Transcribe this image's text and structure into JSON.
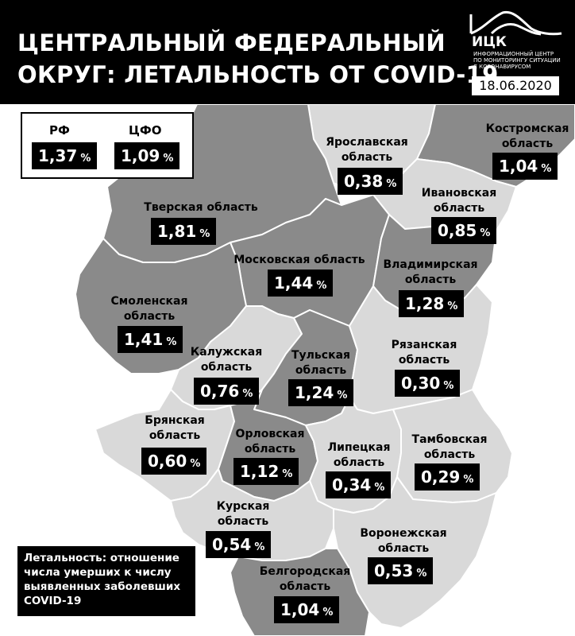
{
  "header": {
    "title_line1": "ЦЕНТРАЛЬНЫЙ ФЕДЕРАЛЬНЫЙ",
    "title_line2": "ОКРУГ: ЛЕТАЛЬНОСТЬ ОТ COVID-19",
    "logo_text": "ИЦК",
    "logo_subtitle": "ИНФОРМАЦИОННЫЙ ЦЕНТР ПО МОНИТОРИНГУ СИТУАЦИИ С КОРОНАВИРУСОМ",
    "date": "18.06.2020"
  },
  "legend": {
    "rf_label": "РФ",
    "rf_value": "1,37",
    "cfo_label": "ЦФО",
    "cfo_value": "1,09",
    "percent": "%"
  },
  "note": "Летальность: отношение числа умерших к числу выявленных заболевших COVID-19",
  "colors": {
    "dark": "#8a8a8a",
    "medium": "#b4b4b4",
    "light": "#d9d9d9",
    "box": "#000000"
  },
  "regions": [
    {
      "name": "Ярославская область",
      "value": "0,38",
      "shade": "light"
    },
    {
      "name": "Костромская область",
      "value": "1,04",
      "shade": "dark"
    },
    {
      "name": "Тверская область",
      "value": "1,81",
      "shade": "dark"
    },
    {
      "name": "Ивановская область",
      "value": "0,85",
      "shade": "light"
    },
    {
      "name": "Московская область",
      "value": "1,44",
      "shade": "dark"
    },
    {
      "name": "Владимирская область",
      "value": "1,28",
      "shade": "dark"
    },
    {
      "name": "Смоленская область",
      "value": "1,41",
      "shade": "dark"
    },
    {
      "name": "Калужская область",
      "value": "0,76",
      "shade": "light"
    },
    {
      "name": "Тульская область",
      "value": "1,24",
      "shade": "dark"
    },
    {
      "name": "Рязанская область",
      "value": "0,30",
      "shade": "light"
    },
    {
      "name": "Брянская область",
      "value": "0,60",
      "shade": "light"
    },
    {
      "name": "Орловская область",
      "value": "1,12",
      "shade": "dark"
    },
    {
      "name": "Липецкая область",
      "value": "0,34",
      "shade": "light"
    },
    {
      "name": "Тамбовская область",
      "value": "0,29",
      "shade": "light"
    },
    {
      "name": "Курская область",
      "value": "0,54",
      "shade": "light"
    },
    {
      "name": "Воронежская область",
      "value": "0,53",
      "shade": "light"
    },
    {
      "name": "Белгородская область",
      "value": "1,04",
      "shade": "dark"
    }
  ]
}
